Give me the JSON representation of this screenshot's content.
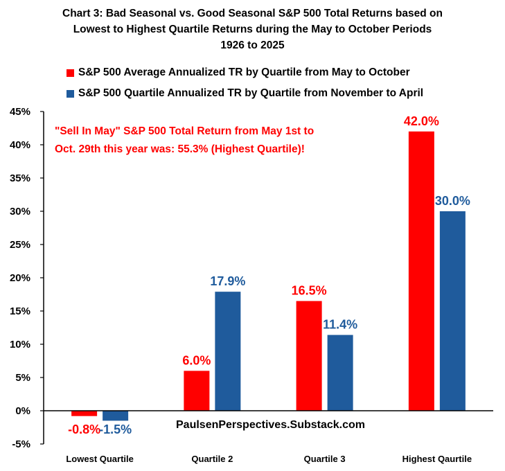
{
  "chart_data": {
    "type": "bar",
    "title": [
      "Chart 3: Bad Seasonal vs. Good Seasonal S&P 500 Total Returns based on",
      "Lowest to Highest Quartile Returns during the May to October Periods",
      "1926 to 2025"
    ],
    "categories": [
      "Lowest Quartile",
      "Quartile 2",
      "Quartile 3",
      "Highest Qaurtile"
    ],
    "series": [
      {
        "name": "S&P 500 Average Annualized TR by Quartile from May to October",
        "color": "#ff0000",
        "values": [
          -0.8,
          6.0,
          16.5,
          42.0
        ],
        "labels": [
          "-0.8%",
          "6.0%",
          "16.5%",
          "42.0%"
        ]
      },
      {
        "name": "S&P 500 Quartile Annualized TR by Quartile from November to April",
        "color": "#1f5b9c",
        "values": [
          -1.5,
          17.9,
          11.4,
          30.0
        ],
        "labels": [
          "-1.5%",
          "17.9%",
          "11.4%",
          "30.0%"
        ]
      }
    ],
    "ylim": [
      -5,
      45
    ],
    "yticks": [
      -5,
      0,
      5,
      10,
      15,
      20,
      25,
      30,
      35,
      40,
      45
    ],
    "ytick_labels": [
      "-5%",
      "0%",
      "5%",
      "10%",
      "15%",
      "20%",
      "25%",
      "30%",
      "35%",
      "40%",
      "45%"
    ],
    "xlabel": "",
    "ylabel": "",
    "legend": "top",
    "annotation": [
      "\"Sell In May\" S&P 500 Total Return from May 1st to",
      "Oct. 29th this year was: 55.3% (Highest Quartile)!"
    ],
    "annotation_color": "#ff0000",
    "watermark": "PaulsenPerspectives.Substack.com"
  }
}
